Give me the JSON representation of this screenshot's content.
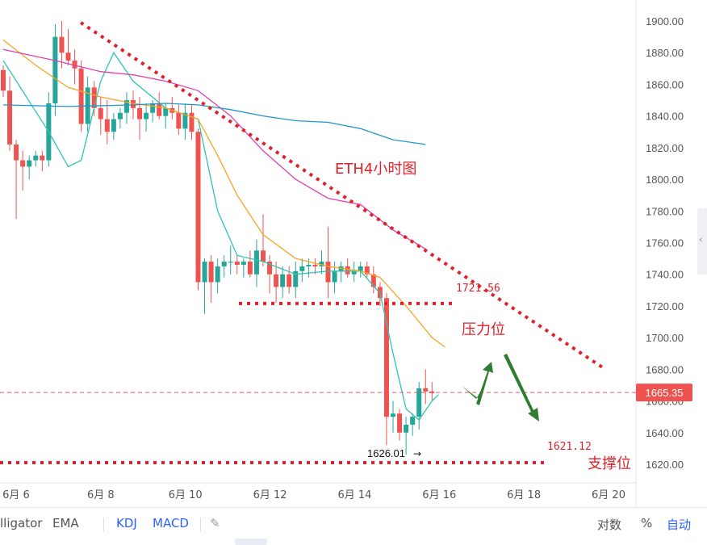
{
  "chart_data": {
    "type": "candlestick",
    "title": "ETH4小时图",
    "y_axis": {
      "min": 1620,
      "max": 1900,
      "step": 20,
      "ticks": [
        "1900.00",
        "1880.00",
        "1860.00",
        "1840.00",
        "1820.00",
        "1800.00",
        "1780.00",
        "1760.00",
        "1740.00",
        "1720.00",
        "1700.00",
        "1680.00",
        "1660.00",
        "1640.00",
        "1620.00"
      ]
    },
    "x_ticks": [
      {
        "label": "6月 6",
        "day": 6
      },
      {
        "label": "6月 8",
        "day": 8
      },
      {
        "label": "6月 10",
        "day": 10
      },
      {
        "label": "6月 12",
        "day": 12
      },
      {
        "label": "6月 14",
        "day": 14
      },
      {
        "label": "6月 16",
        "day": 16
      },
      {
        "label": "6月 18",
        "day": 18
      },
      {
        "label": "6月 20",
        "day": 20
      }
    ],
    "candles": [
      [
        1869,
        1872,
        1852,
        1856
      ],
      [
        1856,
        1865,
        1818,
        1822
      ],
      [
        1822,
        1825,
        1775,
        1812
      ],
      [
        1812,
        1818,
        1793,
        1808
      ],
      [
        1808,
        1815,
        1800,
        1812
      ],
      [
        1812,
        1818,
        1808,
        1815
      ],
      [
        1815,
        1818,
        1805,
        1812
      ],
      [
        1812,
        1855,
        1808,
        1848
      ],
      [
        1848,
        1898,
        1840,
        1890
      ],
      [
        1890,
        1900,
        1870,
        1880
      ],
      [
        1880,
        1895,
        1872,
        1875
      ],
      [
        1875,
        1882,
        1860,
        1870
      ],
      [
        1870,
        1875,
        1830,
        1835
      ],
      [
        1835,
        1865,
        1830,
        1858
      ],
      [
        1858,
        1862,
        1840,
        1845
      ],
      [
        1845,
        1852,
        1828,
        1838
      ],
      [
        1838,
        1850,
        1822,
        1830
      ],
      [
        1830,
        1842,
        1825,
        1838
      ],
      [
        1838,
        1845,
        1832,
        1842
      ],
      [
        1842,
        1855,
        1835,
        1850
      ],
      [
        1850,
        1856,
        1838,
        1845
      ],
      [
        1845,
        1852,
        1825,
        1838
      ],
      [
        1838,
        1848,
        1830,
        1842
      ],
      [
        1842,
        1850,
        1836,
        1848
      ],
      [
        1848,
        1855,
        1838,
        1840
      ],
      [
        1840,
        1848,
        1832,
        1845
      ],
      [
        1845,
        1852,
        1838,
        1842
      ],
      [
        1842,
        1847,
        1828,
        1832
      ],
      [
        1832,
        1848,
        1825,
        1842
      ],
      [
        1842,
        1847,
        1825,
        1830
      ],
      [
        1830,
        1832,
        1730,
        1735
      ],
      [
        1735,
        1750,
        1715,
        1748
      ],
      [
        1748,
        1752,
        1722,
        1735
      ],
      [
        1735,
        1750,
        1728,
        1745
      ],
      [
        1745,
        1752,
        1738,
        1748
      ],
      [
        1748,
        1758,
        1740,
        1748
      ],
      [
        1748,
        1752,
        1740,
        1746
      ],
      [
        1746,
        1750,
        1738,
        1748
      ],
      [
        1748,
        1755,
        1738,
        1740
      ],
      [
        1740,
        1762,
        1732,
        1755
      ],
      [
        1755,
        1778,
        1745,
        1748
      ],
      [
        1748,
        1752,
        1728,
        1740
      ],
      [
        1740,
        1748,
        1722,
        1732
      ],
      [
        1732,
        1745,
        1725,
        1740
      ],
      [
        1740,
        1745,
        1728,
        1732
      ],
      [
        1732,
        1748,
        1725,
        1742
      ],
      [
        1742,
        1750,
        1735,
        1745
      ],
      [
        1745,
        1750,
        1738,
        1746
      ],
      [
        1746,
        1750,
        1740,
        1745
      ],
      [
        1745,
        1755,
        1740,
        1748
      ],
      [
        1748,
        1770,
        1725,
        1735
      ],
      [
        1735,
        1748,
        1728,
        1742
      ],
      [
        1742,
        1748,
        1735,
        1745
      ],
      [
        1745,
        1750,
        1738,
        1740
      ],
      [
        1740,
        1748,
        1735,
        1742
      ],
      [
        1742,
        1748,
        1738,
        1745
      ],
      [
        1745,
        1748,
        1738,
        1740
      ],
      [
        1740,
        1745,
        1728,
        1732
      ],
      [
        1732,
        1735,
        1720,
        1725
      ],
      [
        1725,
        1728,
        1632,
        1650
      ],
      [
        1650,
        1660,
        1640,
        1652
      ],
      [
        1652,
        1655,
        1635,
        1640
      ],
      [
        1640,
        1650,
        1626,
        1645
      ],
      [
        1645,
        1652,
        1638,
        1650
      ],
      [
        1650,
        1672,
        1642,
        1668
      ],
      [
        1668,
        1680,
        1658,
        1666
      ],
      [
        1666,
        1672,
        1660,
        1665
      ]
    ],
    "ema_lines": [
      {
        "name": "EMA-fast",
        "color": "#2ec4b6",
        "points": [
          [
            0,
            1875
          ],
          [
            7,
            1830
          ],
          [
            10,
            1808
          ],
          [
            12,
            1812
          ],
          [
            15,
            1862
          ],
          [
            17,
            1880
          ],
          [
            20,
            1862
          ],
          [
            25,
            1845
          ],
          [
            30,
            1838
          ],
          [
            33,
            1780
          ],
          [
            36,
            1752
          ],
          [
            40,
            1748
          ],
          [
            45,
            1740
          ],
          [
            50,
            1742
          ],
          [
            55,
            1742
          ],
          [
            58,
            1728
          ],
          [
            60,
            1690
          ],
          [
            62,
            1655
          ],
          [
            64,
            1648
          ],
          [
            66,
            1660
          ],
          [
            67,
            1664
          ]
        ]
      },
      {
        "name": "EMA-mid",
        "color": "#f5a623",
        "points": [
          [
            0,
            1888
          ],
          [
            5,
            1872
          ],
          [
            10,
            1858
          ],
          [
            15,
            1852
          ],
          [
            20,
            1848
          ],
          [
            25,
            1845
          ],
          [
            30,
            1838
          ],
          [
            33,
            1815
          ],
          [
            36,
            1790
          ],
          [
            40,
            1765
          ],
          [
            45,
            1750
          ],
          [
            50,
            1745
          ],
          [
            55,
            1742
          ],
          [
            58,
            1738
          ],
          [
            62,
            1720
          ],
          [
            66,
            1700
          ],
          [
            68,
            1694
          ]
        ]
      },
      {
        "name": "EMA-slow",
        "color": "#e040b0",
        "points": [
          [
            0,
            1882
          ],
          [
            8,
            1875
          ],
          [
            15,
            1868
          ],
          [
            20,
            1866
          ],
          [
            25,
            1862
          ],
          [
            30,
            1856
          ],
          [
            35,
            1840
          ],
          [
            40,
            1818
          ],
          [
            45,
            1800
          ],
          [
            50,
            1788
          ],
          [
            55,
            1784
          ],
          [
            60,
            1768
          ],
          [
            65,
            1756
          ]
        ]
      },
      {
        "name": "EMA-long",
        "color": "#2196c9",
        "points": [
          [
            0,
            1847
          ],
          [
            10,
            1846
          ],
          [
            20,
            1847
          ],
          [
            25,
            1848
          ],
          [
            30,
            1847
          ],
          [
            35,
            1844
          ],
          [
            40,
            1840
          ],
          [
            45,
            1837
          ],
          [
            50,
            1836
          ],
          [
            55,
            1832
          ],
          [
            60,
            1825
          ],
          [
            65,
            1822
          ]
        ]
      }
    ],
    "current_price": "1665.35",
    "annotations": {
      "resistance_value": "1721.56",
      "resistance_label": "压力位",
      "support_value": "1621.12",
      "support_label": "支撑位",
      "low_value": "1626.01"
    }
  },
  "colors": {
    "up": "#26a69a",
    "down": "#ef5350",
    "annot": "#e0202a",
    "arrow": "#2e7d32",
    "price_tag": "#ef5350"
  },
  "toolbar": {
    "item1": "lligator",
    "item2": "EMA",
    "item3": "KDJ",
    "item4": "MACD",
    "edit_icon": "✎",
    "log": "对数",
    "pct": "%",
    "auto": "自动"
  },
  "side_button": "‹"
}
